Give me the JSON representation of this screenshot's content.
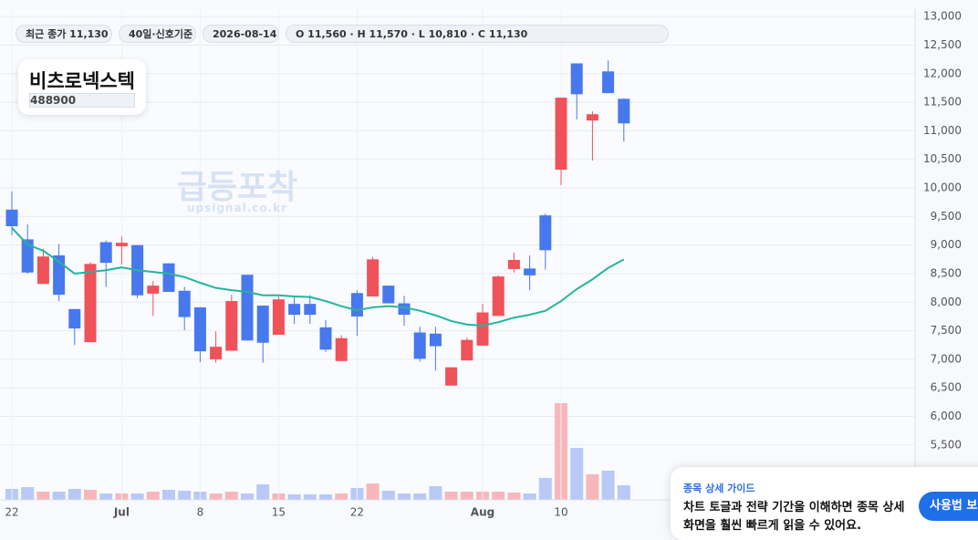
{
  "header": {
    "chips": [
      "최근 종가 11,130",
      "40일·신호기준",
      "2026-08-14",
      "O 11,560 · H 11,570 · L 10,810 · C 11,130"
    ]
  },
  "stock": {
    "name": "비츠로넥스텍",
    "code": "488900"
  },
  "watermark": {
    "title": "급등포착",
    "site": "upsignal.co.kr"
  },
  "chart_data": {
    "type": "candlestick",
    "categories": [
      "22",
      null,
      null,
      null,
      null,
      null,
      null,
      "Jul",
      null,
      null,
      null,
      null,
      "8",
      null,
      null,
      null,
      null,
      "15",
      null,
      null,
      null,
      null,
      "22",
      null,
      null,
      null,
      null,
      null,
      null,
      null,
      "Aug",
      null,
      null,
      null,
      null,
      "10",
      null,
      null,
      null,
      null
    ],
    "open": [
      9620,
      9100,
      8320,
      8820,
      7880,
      7300,
      9050,
      8980,
      9000,
      8150,
      8680,
      8200,
      7910,
      7000,
      7150,
      8480,
      7940,
      7430,
      7970,
      7970,
      7560,
      6970,
      8160,
      8100,
      8290,
      7980,
      7470,
      7450,
      6540,
      6980,
      7240,
      7760,
      8580,
      8590,
      9520,
      10320,
      12180,
      11180,
      12040,
      11560
    ],
    "high": [
      9940,
      9360,
      8940,
      9020,
      7880,
      8700,
      9080,
      9150,
      9000,
      8370,
      8680,
      8270,
      7910,
      7490,
      8130,
      8480,
      7940,
      8100,
      8100,
      8120,
      7690,
      7420,
      8210,
      8790,
      8290,
      8110,
      7570,
      7570,
      6860,
      7380,
      7970,
      8470,
      8870,
      8820,
      9550,
      11580,
      12180,
      11340,
      12230,
      11570
    ],
    "low": [
      9170,
      8500,
      8320,
      8020,
      7250,
      7300,
      8270,
      8660,
      8070,
      7760,
      8180,
      7510,
      6950,
      6940,
      7150,
      7330,
      6940,
      7430,
      7620,
      7620,
      7130,
      6970,
      7410,
      8100,
      7980,
      7590,
      6960,
      6800,
      6540,
      6980,
      7240,
      7760,
      8520,
      8210,
      8570,
      10050,
      11200,
      10480,
      11660,
      10810
    ],
    "close": [
      9330,
      8520,
      8800,
      8130,
      7540,
      8670,
      8690,
      9040,
      8120,
      8290,
      8180,
      7740,
      7140,
      7220,
      8020,
      7330,
      7290,
      8050,
      7780,
      7780,
      7170,
      7370,
      7750,
      8750,
      7980,
      7780,
      7010,
      7230,
      6860,
      7340,
      7820,
      8450,
      8740,
      8470,
      8910,
      11580,
      11640,
      11290,
      11660,
      11130
    ],
    "volume": [
      12,
      14,
      9,
      9,
      12,
      11,
      7,
      7,
      7,
      9,
      11,
      10,
      9,
      7,
      9,
      7,
      17,
      7,
      6,
      6,
      6,
      7,
      13,
      18,
      10,
      7,
      7,
      15,
      9,
      9,
      9,
      9,
      8,
      7,
      24,
      106,
      57,
      28,
      32,
      16
    ],
    "ma": {
      "color": "#22b59b",
      "values": [
        9300,
        9010,
        8900,
        8710,
        8500,
        8530,
        8560,
        8610,
        8560,
        8530,
        8500,
        8440,
        8340,
        8250,
        8210,
        8180,
        8120,
        8120,
        8100,
        8090,
        8020,
        7930,
        7860,
        7910,
        7930,
        7910,
        7850,
        7770,
        7670,
        7610,
        7590,
        7650,
        7730,
        7780,
        7850,
        8020,
        8230,
        8400,
        8600,
        8750
      ]
    },
    "up_color": "#f0525a",
    "down_color": "#4778ee",
    "up_volume_color": "#f7b7ba",
    "down_volume_color": "#b8c9f6",
    "ylim": [
      4540,
      13130
    ],
    "yticks": [
      {
        "value": 5500,
        "label": "5,500"
      },
      {
        "value": 6000,
        "label": "6,000"
      },
      {
        "value": 6500,
        "label": "6,500"
      },
      {
        "value": 7000,
        "label": "7,000"
      },
      {
        "value": 7500,
        "label": "7,500"
      },
      {
        "value": 8000,
        "label": "8,000"
      },
      {
        "value": 8500,
        "label": "8,500"
      },
      {
        "value": 9000,
        "label": "9,000"
      },
      {
        "value": 9500,
        "label": "9,500"
      },
      {
        "value": 10000,
        "label": "10,000"
      },
      {
        "value": 10500,
        "label": "10,500"
      },
      {
        "value": 11000,
        "label": "11,000"
      },
      {
        "value": 11500,
        "label": "11,500"
      },
      {
        "value": 12000,
        "label": "12,000"
      },
      {
        "value": 12500,
        "label": "12,500"
      },
      {
        "value": 13000,
        "label": "13,000"
      }
    ],
    "grid": true
  },
  "guide": {
    "title": "종목 상세 가이드",
    "lines": [
      "차트 토글과 전략 기간을 이해하면 종목 상세",
      "화면을 훨씬 빠르게 읽을 수 있어요."
    ],
    "button": "사용법 보기"
  }
}
